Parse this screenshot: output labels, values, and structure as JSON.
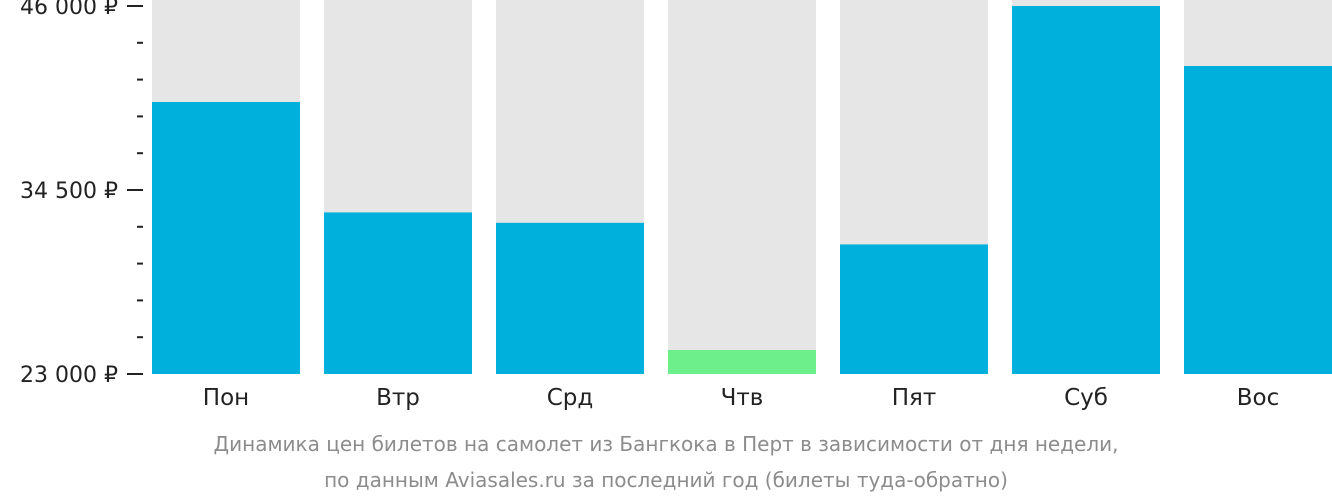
{
  "chart_data": {
    "type": "bar",
    "categories": [
      "Пон",
      "Втр",
      "Срд",
      "Чтв",
      "Пят",
      "Суб",
      "Вос"
    ],
    "values": [
      40000,
      33100,
      32450,
      24500,
      31100,
      46000,
      42250
    ],
    "highlight_index": 3,
    "ylim": [
      23000,
      46000
    ],
    "yticks": [
      {
        "value": 23000,
        "label": "23 000 ₽"
      },
      {
        "value": 34500,
        "label": "34 500 ₽"
      },
      {
        "value": 46000,
        "label": "46 000 ₽"
      }
    ],
    "minor_ticks_between": 4,
    "colors": {
      "bar": "#00b0dc",
      "highlight": "#6df08c",
      "background_bar": "#e6e6e6",
      "axis": "#222222",
      "caption": "#8c8c8c"
    },
    "caption_lines": [
      "Динамика цен билетов на самолет из Бангкока в Перт в зависимости от дня недели,",
      "по данным Aviasales.ru за последний год (билеты туда-обратно)"
    ]
  }
}
